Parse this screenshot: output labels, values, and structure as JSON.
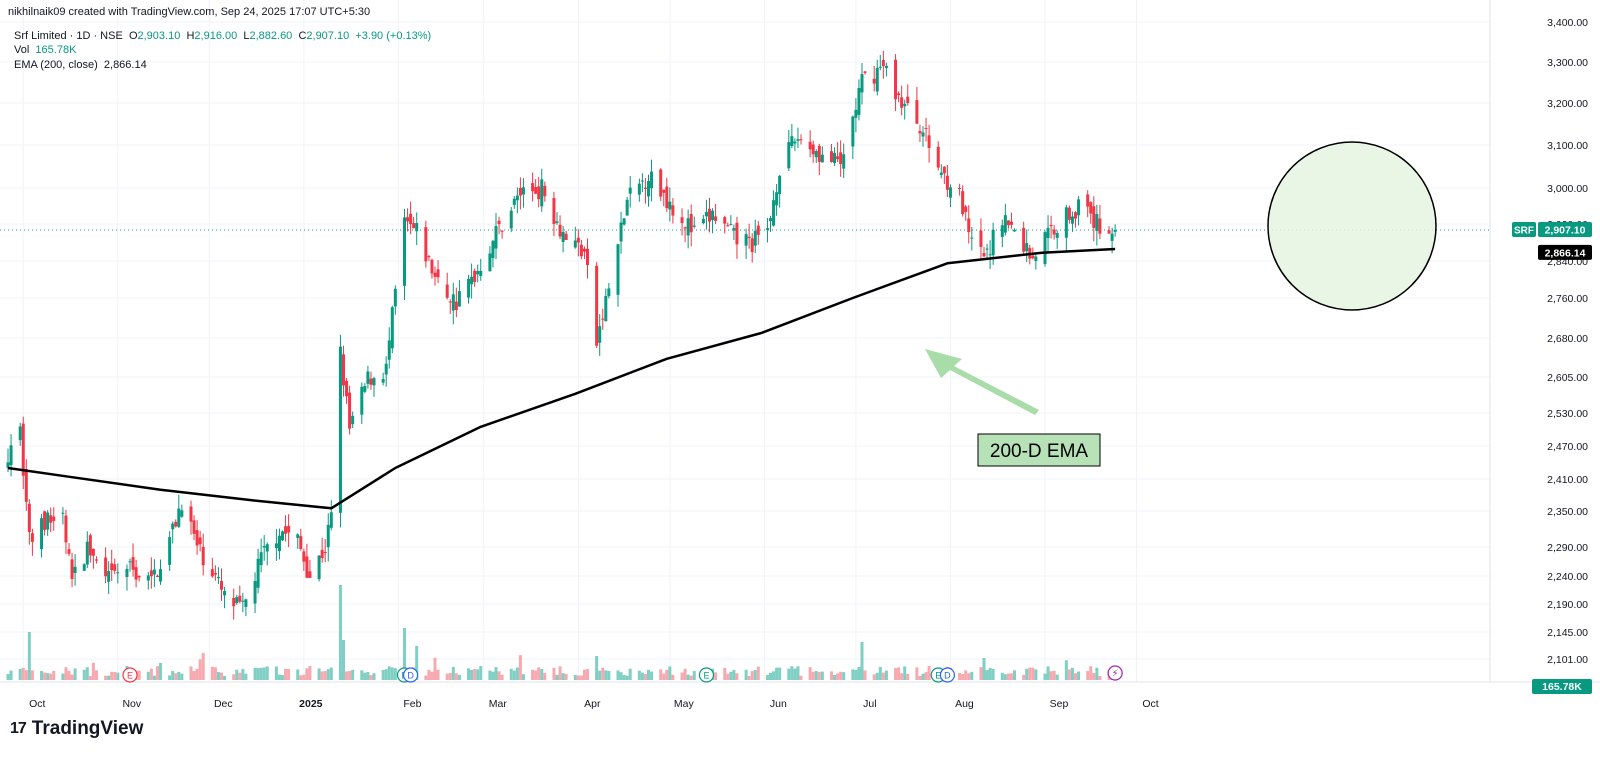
{
  "header": {
    "creator": "nikhilnaik09 created with TradingView.com, Sep 24, 2025 17:07 UTC+5:30",
    "symbol_line": "Srf Limited · 1D · NSE",
    "o_label": "O",
    "o_value": "2,903.10",
    "h_label": "H",
    "h_value": "2,916.00",
    "l_label": "L",
    "l_value": "2,882.60",
    "c_label": "C",
    "c_value": "2,907.10",
    "change": "+3.90 (+0.13%)",
    "vol_label": "Vol",
    "vol_value": "165.78K",
    "ema_label": "EMA (200, close)",
    "ema_value": "2,866.14"
  },
  "brand": {
    "name": "TradingView",
    "logo": "17"
  },
  "colors": {
    "up": "#089981",
    "down": "#f23645",
    "up_vol": "#7fcfc4",
    "down_vol": "#f7a9af",
    "ema": "#000000",
    "annotation_bg": "#b7e1b7",
    "circle_fill": "#e6f4e1"
  },
  "chart_data": {
    "type": "candlestick",
    "title": "Srf Limited · 1D · NSE",
    "x_tick_labels": [
      "Oct",
      "Nov",
      "Dec",
      "2025",
      "Feb",
      "Mar",
      "Apr",
      "May",
      "Jun",
      "Jul",
      "Aug",
      "Sep",
      "Oct"
    ],
    "y_tick_labels": [
      "2,101.00",
      "2,145.00",
      "2,190.00",
      "2,240.00",
      "2,290.00",
      "2,350.00",
      "2,410.00",
      "2,470.00",
      "2,530.00",
      "2,605.00",
      "2,680.00",
      "2,760.00",
      "2,840.00",
      "2,920.00",
      "3,000.00",
      "3,100.00",
      "3,200.00",
      "3,300.00",
      "3,400.00"
    ],
    "ylim": [
      2080,
      3420
    ],
    "last_price": {
      "label": "SRF",
      "value": "2,907.10"
    },
    "ema_price": {
      "value": "2,866.14"
    },
    "volume_label": "165.78K",
    "annotation": {
      "text": "200-D EMA"
    },
    "event_markers": [
      {
        "date": "2024-11-05",
        "type": "E"
      },
      {
        "date": "2025-02-03",
        "type": "E"
      },
      {
        "date": "2025-02-05",
        "type": "D"
      },
      {
        "date": "2025-05-13",
        "type": "E"
      },
      {
        "date": "2025-07-28",
        "type": "E"
      },
      {
        "date": "2025-07-31",
        "type": "D"
      },
      {
        "date": "2025-09-24",
        "type": "lightning"
      }
    ],
    "anchors": [
      [
        "2024-09-26",
        2460
      ],
      [
        "2024-09-30",
        2500
      ],
      [
        "2024-10-03",
        2300
      ],
      [
        "2024-10-08",
        2330
      ],
      [
        "2024-10-14",
        2340
      ],
      [
        "2024-10-17",
        2230
      ],
      [
        "2024-10-22",
        2290
      ],
      [
        "2024-10-28",
        2230
      ],
      [
        "2024-11-04",
        2255
      ],
      [
        "2024-11-12",
        2230
      ],
      [
        "2024-11-18",
        2300
      ],
      [
        "2024-11-22",
        2370
      ],
      [
        "2024-11-27",
        2290
      ],
      [
        "2024-12-02",
        2250
      ],
      [
        "2024-12-06",
        2200
      ],
      [
        "2024-12-12",
        2180
      ],
      [
        "2024-12-18",
        2270
      ],
      [
        "2024-12-24",
        2320
      ],
      [
        "2024-12-30",
        2300
      ],
      [
        "2025-01-03",
        2240
      ],
      [
        "2025-01-08",
        2290
      ],
      [
        "2025-01-10",
        2340
      ],
      [
        "2025-01-13",
        2650
      ],
      [
        "2025-01-16",
        2500
      ],
      [
        "2025-01-22",
        2600
      ],
      [
        "2025-01-28",
        2620
      ],
      [
        "2025-02-03",
        2920
      ],
      [
        "2025-02-07",
        2900
      ],
      [
        "2025-02-14",
        2790
      ],
      [
        "2025-02-20",
        2750
      ],
      [
        "2025-02-27",
        2820
      ],
      [
        "2025-03-05",
        2900
      ],
      [
        "2025-03-13",
        2990
      ],
      [
        "2025-03-20",
        3000
      ],
      [
        "2025-03-27",
        2900
      ],
      [
        "2025-04-03",
        2860
      ],
      [
        "2025-04-07",
        2670
      ],
      [
        "2025-04-11",
        2780
      ],
      [
        "2025-04-17",
        2970
      ],
      [
        "2025-04-24",
        3030
      ],
      [
        "2025-05-02",
        2960
      ],
      [
        "2025-05-09",
        2900
      ],
      [
        "2025-05-15",
        2940
      ],
      [
        "2025-05-22",
        2890
      ],
      [
        "2025-05-28",
        2880
      ],
      [
        "2025-06-02",
        2900
      ],
      [
        "2025-06-06",
        3050
      ],
      [
        "2025-06-12",
        3120
      ],
      [
        "2025-06-19",
        3080
      ],
      [
        "2025-06-26",
        3050
      ],
      [
        "2025-07-03",
        3250
      ],
      [
        "2025-07-10",
        3290
      ],
      [
        "2025-07-16",
        3200
      ],
      [
        "2025-07-22",
        3150
      ],
      [
        "2025-07-28",
        3050
      ],
      [
        "2025-08-04",
        2980
      ],
      [
        "2025-08-08",
        2870
      ],
      [
        "2025-08-13",
        2850
      ],
      [
        "2025-08-18",
        2940
      ],
      [
        "2025-08-22",
        2900
      ],
      [
        "2025-08-28",
        2850
      ],
      [
        "2025-09-02",
        2900
      ],
      [
        "2025-09-08",
        2940
      ],
      [
        "2025-09-12",
        2960
      ],
      [
        "2025-09-18",
        2920
      ],
      [
        "2025-09-24",
        2907
      ]
    ],
    "ema_points": [
      [
        "2024-09-26",
        2430
      ],
      [
        "2024-10-15",
        2415
      ],
      [
        "2024-11-15",
        2390
      ],
      [
        "2024-12-15",
        2370
      ],
      [
        "2025-01-10",
        2355
      ],
      [
        "2025-01-31",
        2430
      ],
      [
        "2025-02-28",
        2505
      ],
      [
        "2025-03-31",
        2570
      ],
      [
        "2025-04-30",
        2640
      ],
      [
        "2025-05-31",
        2690
      ],
      [
        "2025-06-30",
        2760
      ],
      [
        "2025-07-31",
        2835
      ],
      [
        "2025-08-31",
        2858
      ],
      [
        "2025-09-24",
        2866
      ]
    ]
  }
}
